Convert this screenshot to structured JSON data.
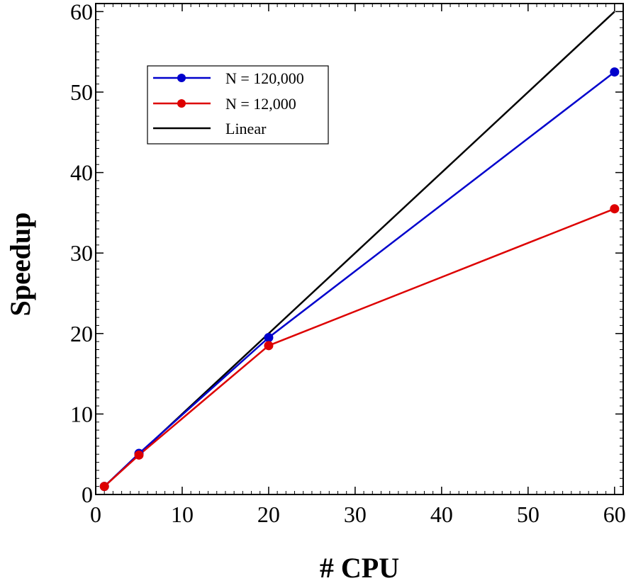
{
  "chart_data": {
    "type": "line",
    "title": "",
    "xlabel": "# CPU",
    "ylabel": "Speedup",
    "xlim": [
      0,
      61
    ],
    "ylim": [
      0,
      61
    ],
    "x_ticks": [
      0,
      10,
      20,
      30,
      40,
      50,
      60
    ],
    "y_ticks": [
      0,
      10,
      20,
      30,
      40,
      50,
      60
    ],
    "x_tick_labels": [
      "0",
      "10",
      "20",
      "30",
      "40",
      "50",
      "60"
    ],
    "y_tick_labels": [
      "0",
      "10",
      "20",
      "30",
      "40",
      "50",
      "60"
    ],
    "grid": false,
    "legend_position": "top-left",
    "series": [
      {
        "name": "N = 120,000",
        "color": "#0000cc",
        "markers": true,
        "x": [
          1,
          5,
          20,
          60
        ],
        "y": [
          1,
          5.1,
          19.5,
          52.5
        ]
      },
      {
        "name": "N = 12,000",
        "color": "#dd0000",
        "markers": true,
        "x": [
          1,
          5,
          20,
          60
        ],
        "y": [
          1,
          4.9,
          18.5,
          35.5
        ]
      },
      {
        "name": "Linear",
        "color": "#000000",
        "markers": false,
        "x": [
          1,
          60
        ],
        "y": [
          1,
          60
        ]
      }
    ]
  }
}
